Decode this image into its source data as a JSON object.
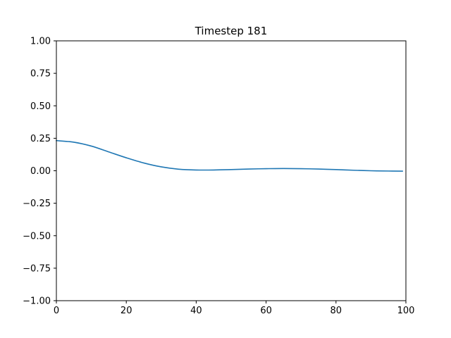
{
  "chart_data": {
    "type": "line",
    "title": "Timestep 181",
    "xlabel": "",
    "ylabel": "",
    "xlim": [
      0,
      100
    ],
    "ylim": [
      -1.0,
      1.0
    ],
    "x_ticks": [
      "0",
      "20",
      "40",
      "60",
      "80",
      "100"
    ],
    "y_ticks": [
      "−1.00",
      "−0.75",
      "−0.50",
      "−0.25",
      "0.00",
      "0.25",
      "0.50",
      "0.75",
      "1.00"
    ],
    "grid": false,
    "series": [
      {
        "color": "#1f77b4",
        "x": [
          0,
          5,
          10,
          15,
          20,
          25,
          30,
          35,
          40,
          45,
          50,
          55,
          60,
          65,
          70,
          75,
          80,
          85,
          90,
          95,
          99
        ],
        "y": [
          0.232,
          0.22,
          0.19,
          0.145,
          0.1,
          0.06,
          0.03,
          0.012,
          0.006,
          0.006,
          0.009,
          0.013,
          0.016,
          0.017,
          0.016,
          0.013,
          0.009,
          0.004,
          0.0,
          -0.002,
          -0.003
        ]
      }
    ]
  }
}
